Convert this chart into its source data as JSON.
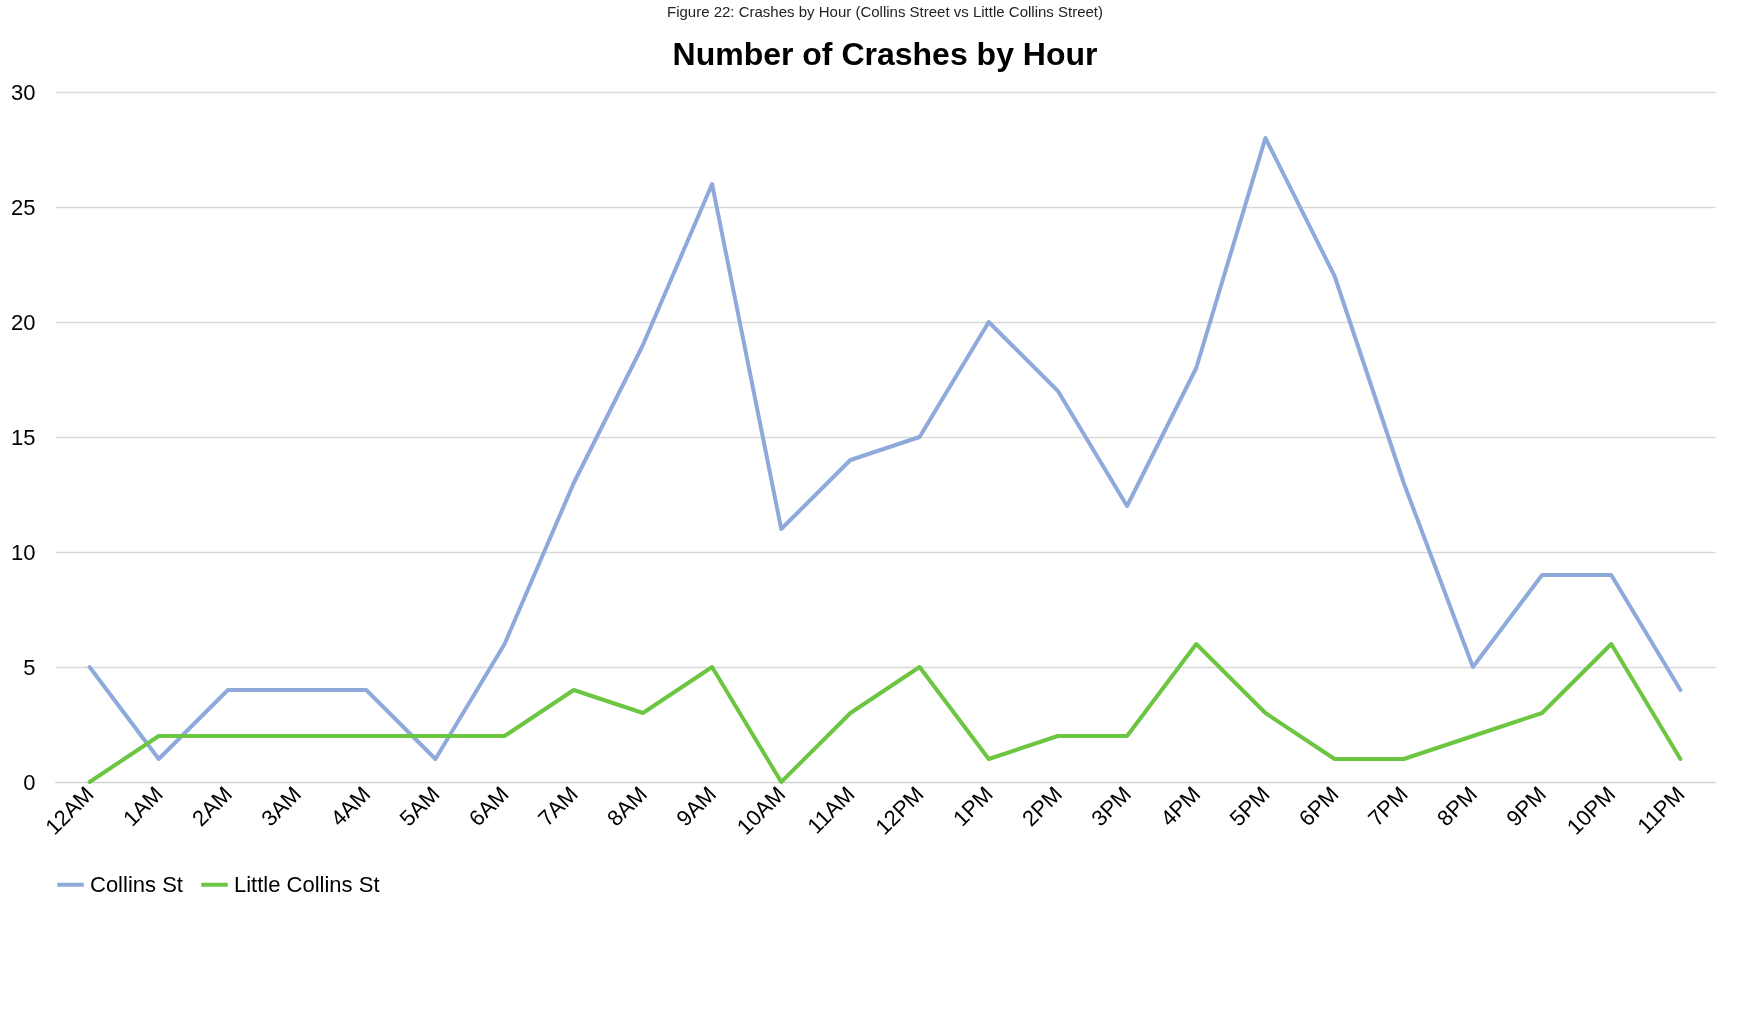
{
  "chart_data": {
    "type": "line",
    "title": "Number of Crashes by Hour",
    "annotations": [
      "Figure 22: Crashes by Hour (Collins Street vs Little Collins Street)"
    ],
    "categories": [
      "12AM",
      "1AM",
      "2AM",
      "3AM",
      "4AM",
      "5AM",
      "6AM",
      "7AM",
      "8AM",
      "9AM",
      "10AM",
      "11AM",
      "12PM",
      "1PM",
      "2PM",
      "3PM",
      "4PM",
      "5PM",
      "6PM",
      "7PM",
      "8PM",
      "9PM",
      "10PM",
      "11PM"
    ],
    "series": [
      {
        "name": "Collins St",
        "color": "#8eaadb",
        "values": [
          5,
          1,
          4,
          4,
          4,
          1,
          6,
          13,
          19,
          26,
          11,
          14,
          15,
          20,
          17,
          12,
          18,
          28,
          22,
          13,
          5,
          9,
          9,
          4
        ]
      },
      {
        "name": "Little Collins St",
        "color": "#6cc641",
        "values": [
          0,
          2,
          2,
          2,
          2,
          2,
          2,
          4,
          3,
          5,
          0,
          3,
          5,
          1,
          2,
          2,
          6,
          3,
          1,
          1,
          2,
          3,
          6,
          1
        ]
      }
    ],
    "ylim": [
      0,
      30
    ],
    "yticks": [
      0,
      5,
      10,
      15,
      20,
      25,
      30
    ],
    "grid": "y",
    "legend": "bottom",
    "marker": "none",
    "line_style": "solid"
  }
}
